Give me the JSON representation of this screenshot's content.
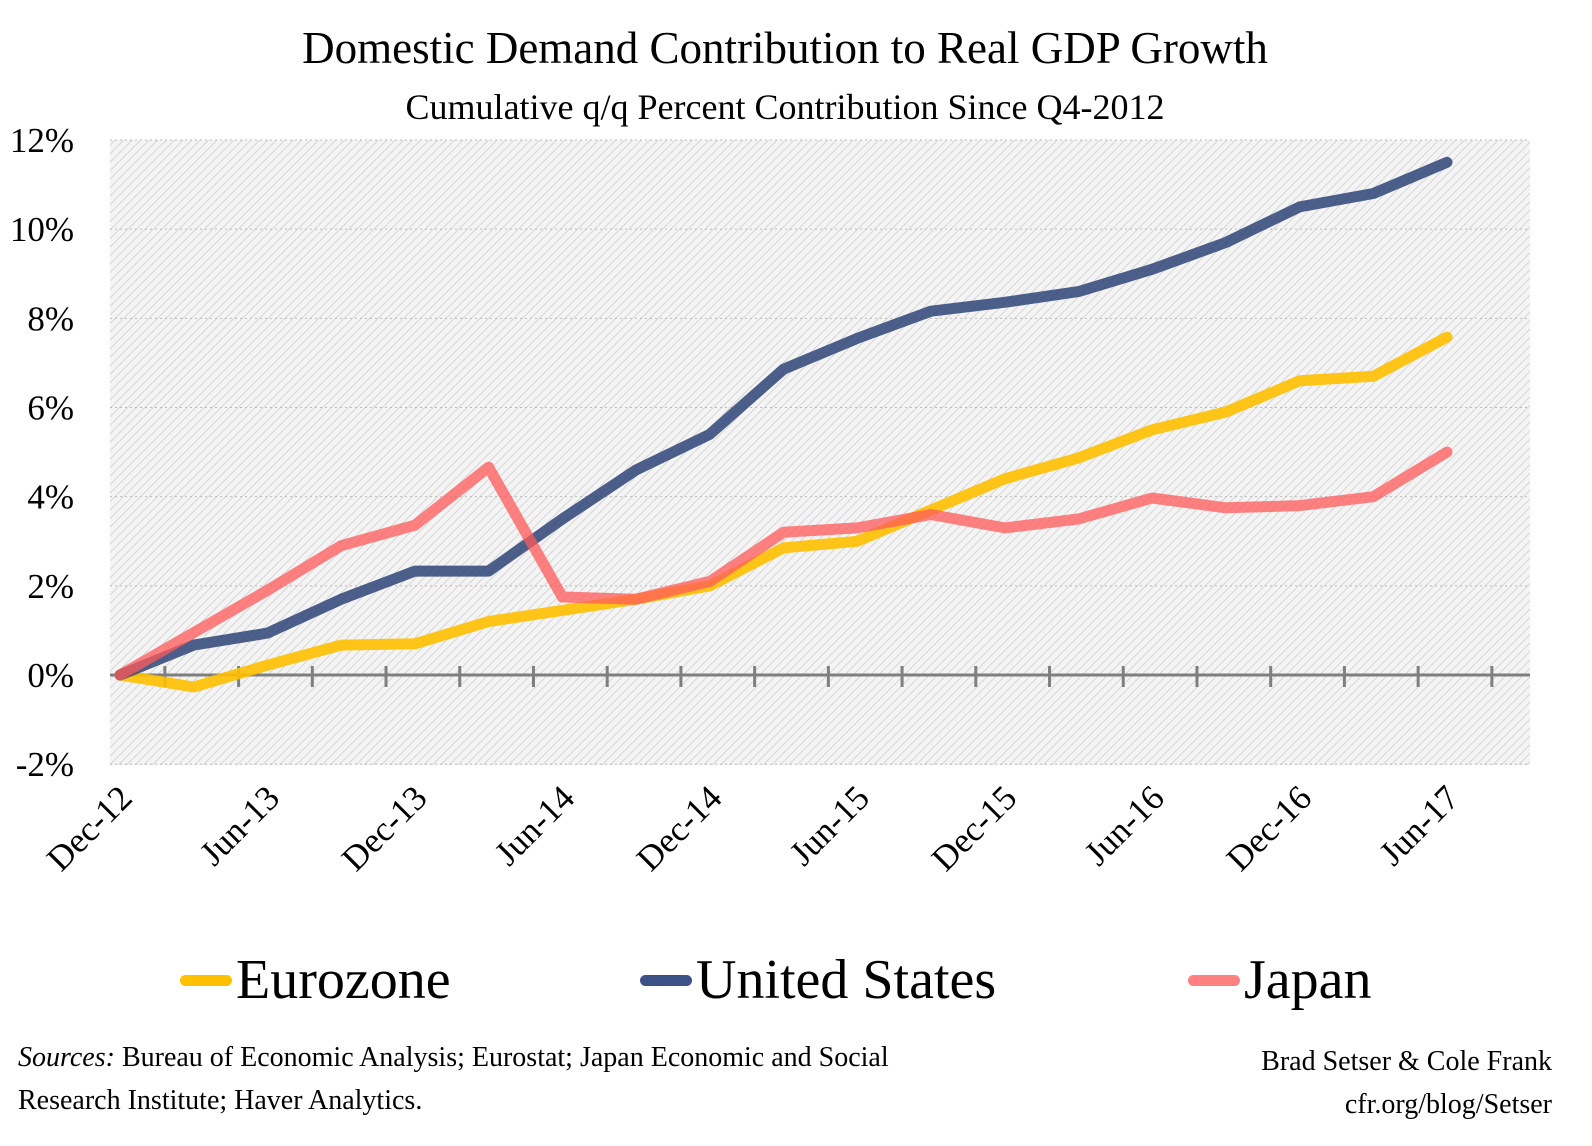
{
  "chart_data": {
    "type": "line",
    "title": "Domestic Demand Contribution to Real GDP Growth",
    "subtitle": "Cumulative q/q Percent Contribution Since Q4-2012",
    "xlabel": "",
    "ylabel": "",
    "ylim": [
      -2,
      12
    ],
    "yticks": [
      "-2%",
      "0%",
      "2%",
      "4%",
      "6%",
      "8%",
      "10%",
      "12%"
    ],
    "ytick_values": [
      -2,
      0,
      2,
      4,
      6,
      8,
      10,
      12
    ],
    "x": [
      "Dec-12",
      "Mar-13",
      "Jun-13",
      "Sep-13",
      "Dec-13",
      "Mar-14",
      "Jun-14",
      "Sep-14",
      "Dec-14",
      "Mar-15",
      "Jun-15",
      "Sep-15",
      "Dec-15",
      "Mar-16",
      "Jun-16",
      "Sep-16",
      "Dec-16",
      "Mar-17",
      "Jun-17"
    ],
    "xtick_labels": [
      "Dec-12",
      "Jun-13",
      "Dec-13",
      "Jun-14",
      "Dec-14",
      "Jun-15",
      "Dec-15",
      "Jun-16",
      "Dec-16",
      "Jun-17"
    ],
    "grid": true,
    "legend_position": "bottom",
    "series": [
      {
        "name": "Eurozone",
        "color": "#FFC000",
        "values": [
          0,
          -0.27,
          0.22,
          0.67,
          0.7,
          1.2,
          1.45,
          1.7,
          2.0,
          2.85,
          3.0,
          3.7,
          4.4,
          4.87,
          5.5,
          5.9,
          6.6,
          6.7,
          7.58
        ]
      },
      {
        "name": "United States",
        "color": "#2E4478",
        "values": [
          0,
          0.67,
          0.94,
          1.7,
          2.33,
          2.33,
          3.5,
          4.6,
          5.4,
          6.86,
          7.55,
          8.16,
          8.36,
          8.6,
          9.1,
          9.7,
          10.5,
          10.8,
          11.5
        ]
      },
      {
        "name": "Japan",
        "color": "#FF5A5A",
        "values": [
          0,
          0.95,
          1.9,
          2.9,
          3.36,
          4.66,
          1.75,
          1.7,
          2.1,
          3.2,
          3.3,
          3.6,
          3.3,
          3.5,
          3.97,
          3.75,
          3.8,
          4.0,
          5.0
        ]
      }
    ]
  },
  "footer": {
    "sources_label": "Sources:",
    "sources_text": " Bureau of Economic Analysis; Eurostat; Japan Economic and Social Research Institute; Haver Analytics.",
    "authors": "Brad Setser & Cole Frank",
    "url": "cfr.org/blog/Setser"
  }
}
